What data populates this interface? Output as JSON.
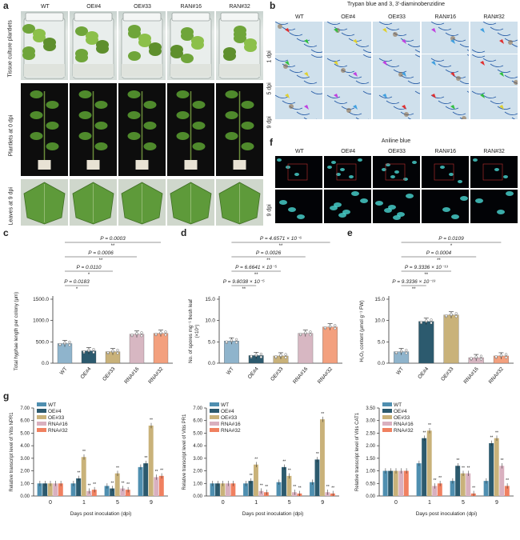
{
  "genotypes": [
    "WT",
    "OE#4",
    "OE#33",
    "RAN#16",
    "RAN#32"
  ],
  "panel_a": {
    "letter": "a",
    "rows": [
      "Tissue culture plantlets",
      "Plantlets at 0 dpi",
      "Leaves at 9 dpi"
    ]
  },
  "panel_b": {
    "letter": "b",
    "title": "Trypan blue  and 3, 3'-diaminobenzidine",
    "rows": [
      "1 dpi",
      "5 dpi",
      "9 dpi"
    ]
  },
  "panel_f": {
    "letter": "f",
    "title": "Aniline blue",
    "rows": [
      "9 dpi"
    ]
  },
  "panel_c": {
    "letter": "c",
    "ylabel": "Total hyphae length per colony (μm)",
    "ticks": [
      "0.0",
      "500.0",
      "1000.0",
      "1500.0"
    ],
    "categories": [
      "WT",
      "OE#4",
      "OE#33",
      "RNA#16",
      "RNA#32"
    ],
    "brackets": [
      {
        "label": "P = 0.0003",
        "sig": "**"
      },
      {
        "label": "P = 0.0006",
        "sig": "**"
      },
      {
        "label": "P = 0.0110",
        "sig": "*"
      },
      {
        "label": "P = 0.0183",
        "sig": "*"
      }
    ]
  },
  "panel_d": {
    "letter": "d",
    "ylabel": "No. of spores  mg⁻¹ fresh leaf",
    "yunit": "(×10⁴)",
    "ticks": [
      "0.0",
      "5.0",
      "10.0",
      "15.0"
    ],
    "categories": [
      "WT",
      "OE#4",
      "OE#33",
      "RNA#16",
      "RNA#32"
    ],
    "brackets": [
      {
        "label": "P = 4.6571 × 10⁻⁶",
        "sig": "**"
      },
      {
        "label": "P = 0.0026",
        "sig": "**"
      },
      {
        "label": "P = 6.6641 × 10⁻⁵",
        "sig": "**"
      },
      {
        "label": "P = 9.8038 × 10⁻⁵",
        "sig": "**"
      }
    ]
  },
  "panel_e": {
    "letter": "e",
    "ylabel": "H₂O₂ content (μmol g⁻¹ FW)",
    "ticks": [
      "0.0",
      "5.0",
      "10.0",
      "15.0"
    ],
    "categories": [
      "WT",
      "OE#4",
      "OE#33",
      "RNA#16",
      "RNA#32"
    ],
    "brackets": [
      {
        "label": "P = 0.0109",
        "sig": "*"
      },
      {
        "label": "P = 0.0004",
        "sig": "**"
      },
      {
        "label": "P = 9.3336 × 10⁻¹³",
        "sig": "**"
      },
      {
        "label": "P = 9.3336 × 10⁻¹³",
        "sig": "**"
      }
    ]
  },
  "panel_g": {
    "letter": "g",
    "xlabel": "Days post inoculation (dpi)",
    "xticks": [
      "0",
      "1",
      "5",
      "9"
    ],
    "legend": [
      "WT",
      "OE#4",
      "OE#33",
      "RNA#16",
      "RNA#32"
    ],
    "colors": [
      "#4f8fb0",
      "#2c5a6e",
      "#c9b27a",
      "#d9b0bf",
      "#f08060"
    ],
    "charts": [
      {
        "ylabel": "Relative transcript level of Vitis NPR1",
        "ticks": [
          "0.00",
          "1.00",
          "2.00",
          "3.00",
          "4.00",
          "5.00",
          "6.00",
          "7.00"
        ]
      },
      {
        "ylabel": "Relative transcript level of Vitis PR1",
        "ticks": [
          "0.00",
          "1.00",
          "2.00",
          "3.00",
          "4.00",
          "5.00",
          "6.00",
          "7.00"
        ]
      },
      {
        "ylabel": "Relative transcript level of Vitis CAT1",
        "ticks": [
          "0.00",
          "0.50",
          "1.00",
          "1.50",
          "2.00",
          "2.50",
          "3.00",
          "3.50"
        ]
      }
    ]
  },
  "chart_data": [
    {
      "type": "bar",
      "panel": "c",
      "categories": [
        "WT",
        "OE#4",
        "OE#33",
        "RNA#16",
        "RNA#32"
      ],
      "values": [
        460,
        290,
        270,
        680,
        700
      ],
      "colors": [
        "#8fb4cc",
        "#2c5a6e",
        "#c9b27a",
        "#d7b7c2",
        "#f3a07e"
      ],
      "ylim": [
        0,
        1500
      ]
    },
    {
      "type": "bar",
      "panel": "d",
      "categories": [
        "WT",
        "OE#4",
        "OE#33",
        "RNA#16",
        "RNA#32"
      ],
      "values": [
        5.2,
        1.8,
        1.7,
        7.0,
        8.5
      ],
      "colors": [
        "#8fb4cc",
        "#2c5a6e",
        "#c9b27a",
        "#d7b7c2",
        "#f3a07e"
      ],
      "ylim": [
        0,
        15
      ]
    },
    {
      "type": "bar",
      "panel": "e",
      "categories": [
        "WT",
        "OE#4",
        "OE#33",
        "RNA#16",
        "RNA#32"
      ],
      "values": [
        2.7,
        9.8,
        11.3,
        1.3,
        1.7
      ],
      "colors": [
        "#8fb4cc",
        "#2c5a6e",
        "#c9b27a",
        "#d7b7c2",
        "#f3a07e"
      ],
      "ylim": [
        0,
        15
      ]
    },
    {
      "type": "bar",
      "panel": "g1",
      "categories": [
        "0",
        "1",
        "5",
        "9"
      ],
      "series": [
        {
          "name": "WT",
          "values": [
            1.0,
            1.0,
            0.8,
            2.3
          ]
        },
        {
          "name": "OE#4",
          "values": [
            1.0,
            1.4,
            0.6,
            2.6
          ]
        },
        {
          "name": "OE#33",
          "values": [
            1.0,
            3.1,
            1.8,
            5.6
          ]
        },
        {
          "name": "RNA#16",
          "values": [
            1.0,
            0.4,
            0.6,
            1.5
          ]
        },
        {
          "name": "RNA#32",
          "values": [
            1.0,
            0.5,
            0.5,
            1.6
          ]
        }
      ],
      "ylim": [
        0,
        7
      ]
    },
    {
      "type": "bar",
      "panel": "g2",
      "categories": [
        "0",
        "1",
        "5",
        "9"
      ],
      "series": [
        {
          "name": "WT",
          "values": [
            1.0,
            1.0,
            1.1,
            1.1
          ]
        },
        {
          "name": "OE#4",
          "values": [
            1.0,
            1.2,
            2.3,
            2.9
          ]
        },
        {
          "name": "OE#33",
          "values": [
            1.0,
            2.5,
            1.6,
            6.1
          ]
        },
        {
          "name": "RNA#16",
          "values": [
            1.0,
            0.4,
            0.3,
            0.3
          ]
        },
        {
          "name": "RNA#32",
          "values": [
            1.0,
            0.3,
            0.2,
            0.2
          ]
        }
      ],
      "ylim": [
        0,
        7
      ]
    },
    {
      "type": "bar",
      "panel": "g3",
      "categories": [
        "0",
        "1",
        "5",
        "9"
      ],
      "series": [
        {
          "name": "WT",
          "values": [
            1.0,
            1.3,
            0.6,
            0.6
          ]
        },
        {
          "name": "OE#4",
          "values": [
            1.0,
            2.3,
            1.2,
            2.1
          ]
        },
        {
          "name": "OE#33",
          "values": [
            1.0,
            2.6,
            0.9,
            2.3
          ]
        },
        {
          "name": "RNA#16",
          "values": [
            1.0,
            0.4,
            0.9,
            1.2
          ]
        },
        {
          "name": "RNA#32",
          "values": [
            1.0,
            0.5,
            0.1,
            0.4
          ]
        }
      ],
      "ylim": [
        0,
        3.5
      ]
    }
  ]
}
